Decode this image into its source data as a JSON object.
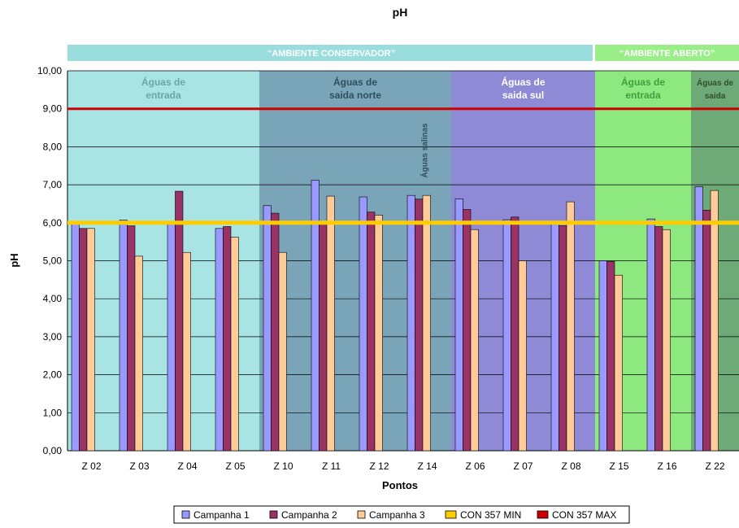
{
  "chart_data": {
    "type": "bar",
    "title": "pH",
    "xlabel": "Pontos",
    "ylabel": "pH",
    "ylim": [
      0,
      10
    ],
    "yticks": [
      "0,00",
      "1,00",
      "2,00",
      "3,00",
      "4,00",
      "5,00",
      "6,00",
      "7,00",
      "8,00",
      "9,00",
      "10,00"
    ],
    "categories": [
      "Z 02",
      "Z 03",
      "Z 04",
      "Z 05",
      "Z 10",
      "Z 11",
      "Z 12",
      "Z 14",
      "Z 06",
      "Z 07",
      "Z 08",
      "Z 15",
      "Z 16",
      "Z 22"
    ],
    "series": [
      {
        "name": "Campanha 1",
        "color": "#9999ff",
        "values": [
          6.03,
          6.07,
          6.0,
          5.85,
          6.45,
          7.12,
          6.68,
          6.72,
          6.63,
          6.08,
          6.0,
          5.0,
          6.1,
          6.95
        ]
      },
      {
        "name": "Campanha 2",
        "color": "#993366",
        "values": [
          5.85,
          5.92,
          6.83,
          5.9,
          6.25,
          5.98,
          6.28,
          6.62,
          6.35,
          6.15,
          5.92,
          4.98,
          5.9,
          6.33
        ]
      },
      {
        "name": "Campanha 3",
        "color": "#ffcc99",
        "values": [
          5.85,
          5.12,
          5.22,
          5.62,
          5.22,
          6.7,
          6.2,
          6.72,
          5.82,
          5.0,
          6.55,
          4.62,
          5.82,
          6.85
        ]
      }
    ],
    "reference_lines": [
      {
        "name": "CON 357 MIN",
        "value": 6.0,
        "color": "#ffcc00"
      },
      {
        "name": "CON 357 MAX",
        "value": 9.0,
        "color": "#cc0000"
      }
    ],
    "banners": [
      {
        "label": "“AMBIENTE CONSERVADOR”",
        "color": "#99dddd",
        "text_color": "#ffffff"
      },
      {
        "label": "“AMBIENTE ABERTO”",
        "color": "#99ee88",
        "text_color": "#ffffff"
      }
    ],
    "zones": [
      {
        "line1": "Águas de",
        "line2": "entrada",
        "color": "#a8e4e4",
        "text_color": "#6aa6a6"
      },
      {
        "line1": "Águas de",
        "line2": "saida norte",
        "color": "#7aa5b8",
        "text_color": "#2f4f5f"
      },
      {
        "line1": "Águas de",
        "line2": "saida sul",
        "color": "#8e8ad6",
        "text_color": "#ffffff"
      },
      {
        "line1": "Águas de",
        "line2": "entrada",
        "color": "#8de880",
        "text_color": "#3f9f3f"
      },
      {
        "line1": "Águas de",
        "line2": "saida",
        "color": "#6daa78",
        "text_color": "#2f4f2f"
      }
    ],
    "annotation": "Águas salinas",
    "grid": true,
    "legend_position": "bottom"
  }
}
